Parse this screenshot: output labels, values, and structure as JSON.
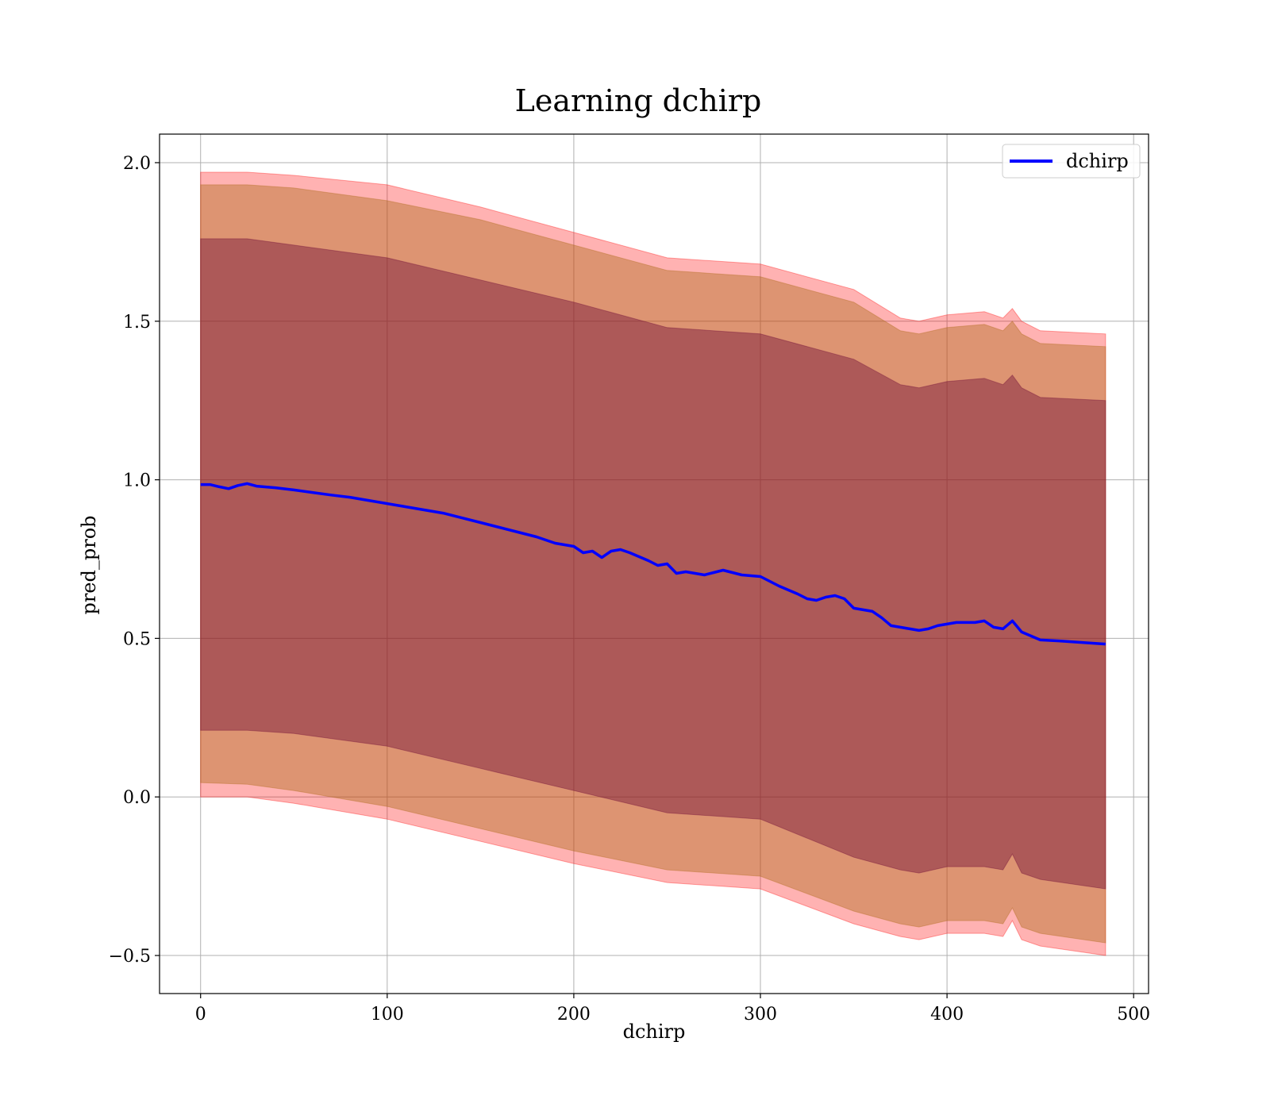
{
  "chart_data": {
    "type": "area",
    "title": "Learning dchirp",
    "xlabel": "dchirp",
    "ylabel": "pred_prob",
    "xlim": [
      -22,
      508
    ],
    "ylim": [
      -0.62,
      2.09
    ],
    "xticks": [
      0,
      100,
      200,
      300,
      400,
      500
    ],
    "xtick_labels": [
      "0",
      "100",
      "200",
      "300",
      "400",
      "500"
    ],
    "yticks": [
      -0.5,
      0.0,
      0.5,
      1.0,
      1.5,
      2.0
    ],
    "ytick_labels": [
      "−0.5",
      "0.0",
      "0.5",
      "1.0",
      "1.5",
      "2.0"
    ],
    "grid": true,
    "legend_position": "top-right",
    "series": [
      {
        "name": "dchirp",
        "color": "#0000ff",
        "x": [
          0,
          5,
          10,
          15,
          20,
          25,
          30,
          40,
          50,
          60,
          70,
          80,
          90,
          100,
          110,
          120,
          130,
          140,
          150,
          160,
          170,
          180,
          190,
          200,
          205,
          210,
          215,
          220,
          225,
          230,
          240,
          245,
          250,
          255,
          260,
          270,
          280,
          290,
          300,
          305,
          310,
          320,
          325,
          330,
          335,
          340,
          345,
          350,
          360,
          365,
          370,
          375,
          380,
          385,
          390,
          395,
          400,
          405,
          410,
          415,
          420,
          425,
          430,
          435,
          440,
          450,
          460,
          470,
          485
        ],
        "y": [
          0.985,
          0.985,
          0.978,
          0.972,
          0.982,
          0.988,
          0.98,
          0.975,
          0.968,
          0.96,
          0.952,
          0.945,
          0.935,
          0.925,
          0.915,
          0.905,
          0.895,
          0.88,
          0.865,
          0.85,
          0.835,
          0.82,
          0.8,
          0.79,
          0.77,
          0.775,
          0.755,
          0.775,
          0.78,
          0.77,
          0.745,
          0.73,
          0.735,
          0.705,
          0.71,
          0.7,
          0.715,
          0.7,
          0.695,
          0.68,
          0.665,
          0.64,
          0.625,
          0.62,
          0.63,
          0.635,
          0.625,
          0.595,
          0.585,
          0.565,
          0.54,
          0.535,
          0.53,
          0.525,
          0.53,
          0.54,
          0.545,
          0.55,
          0.55,
          0.55,
          0.555,
          0.535,
          0.53,
          0.555,
          0.52,
          0.495,
          0.492,
          0.488,
          0.482
        ]
      }
    ],
    "bands": [
      {
        "color": "#ff0000",
        "opacity": 0.3,
        "x": [
          0,
          25,
          50,
          100,
          150,
          200,
          250,
          300,
          350,
          375,
          385,
          400,
          420,
          430,
          435,
          440,
          450,
          485
        ],
        "upper": [
          1.97,
          1.97,
          1.96,
          1.93,
          1.86,
          1.78,
          1.7,
          1.68,
          1.6,
          1.51,
          1.5,
          1.52,
          1.53,
          1.51,
          1.54,
          1.5,
          1.47,
          1.46
        ],
        "lower": [
          0.0,
          0.0,
          -0.02,
          -0.07,
          -0.14,
          -0.21,
          -0.27,
          -0.29,
          -0.4,
          -0.44,
          -0.45,
          -0.43,
          -0.43,
          -0.44,
          -0.39,
          -0.45,
          -0.47,
          -0.5
        ]
      },
      {
        "color": "#aa6611",
        "opacity": 0.4,
        "x": [
          0,
          25,
          50,
          100,
          150,
          200,
          250,
          300,
          350,
          375,
          385,
          400,
          420,
          430,
          435,
          440,
          450,
          485
        ],
        "upper": [
          1.93,
          1.93,
          1.92,
          1.88,
          1.82,
          1.74,
          1.66,
          1.64,
          1.56,
          1.47,
          1.46,
          1.48,
          1.49,
          1.47,
          1.5,
          1.46,
          1.43,
          1.42
        ],
        "lower": [
          0.045,
          0.04,
          0.02,
          -0.03,
          -0.1,
          -0.17,
          -0.23,
          -0.25,
          -0.36,
          -0.4,
          -0.41,
          -0.39,
          -0.39,
          -0.4,
          -0.35,
          -0.41,
          -0.43,
          -0.46
        ]
      },
      {
        "color": "#660033",
        "opacity": 0.4,
        "x": [
          0,
          25,
          50,
          100,
          150,
          200,
          250,
          300,
          350,
          375,
          385,
          400,
          420,
          430,
          435,
          440,
          450,
          485
        ],
        "upper": [
          1.76,
          1.76,
          1.74,
          1.7,
          1.63,
          1.56,
          1.48,
          1.46,
          1.38,
          1.3,
          1.29,
          1.31,
          1.32,
          1.3,
          1.33,
          1.29,
          1.26,
          1.25
        ],
        "lower": [
          0.21,
          0.21,
          0.2,
          0.16,
          0.09,
          0.02,
          -0.05,
          -0.07,
          -0.19,
          -0.23,
          -0.24,
          -0.22,
          -0.22,
          -0.23,
          -0.18,
          -0.24,
          -0.26,
          -0.29
        ]
      }
    ]
  }
}
